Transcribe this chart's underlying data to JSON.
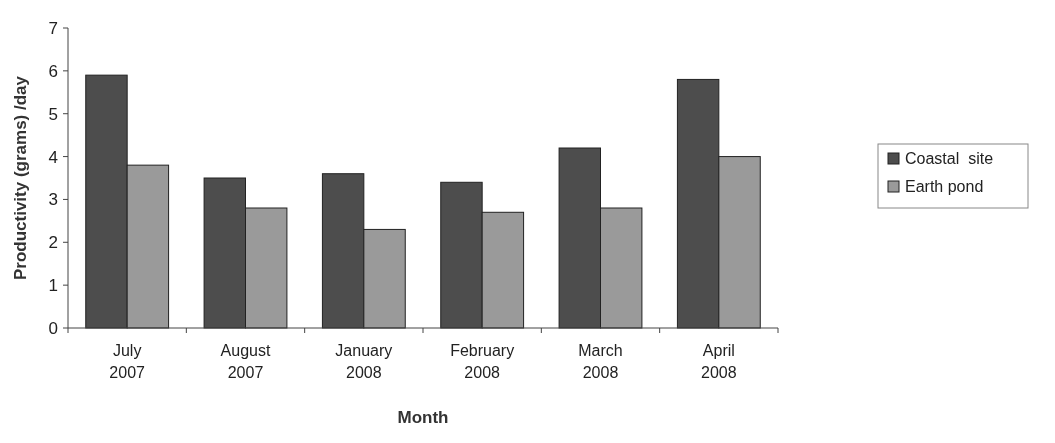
{
  "chart_data": {
    "type": "bar",
    "xlabel": "Month",
    "ylabel": "Productivity (grams) /day",
    "categories": [
      "July 2007",
      "August 2007",
      "January 2008",
      "February 2008",
      "March 2008",
      "April 2008"
    ],
    "series": [
      {
        "name": "Coastal  site",
        "color": "#4d4d4d",
        "values": [
          5.9,
          3.5,
          3.6,
          3.4,
          4.2,
          5.8
        ]
      },
      {
        "name": "Earth pond",
        "color": "#9a9a9a",
        "values": [
          3.8,
          2.8,
          2.3,
          2.7,
          2.8,
          4.0
        ]
      }
    ],
    "ylim": [
      0,
      7
    ],
    "yticks": [
      0,
      1,
      2,
      3,
      4,
      5,
      6,
      7
    ],
    "grid": false,
    "legend": "right"
  }
}
